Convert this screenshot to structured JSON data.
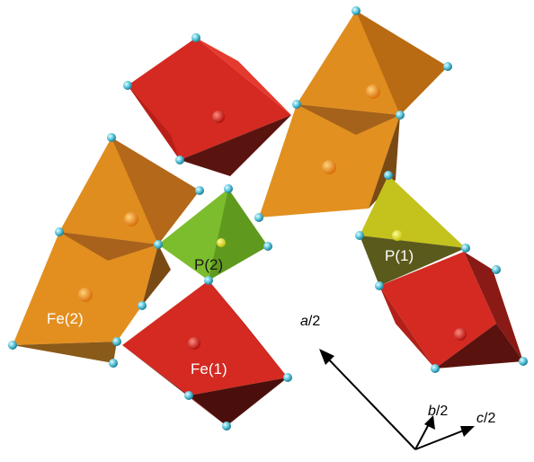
{
  "labels": {
    "fe1": "Fe(1)",
    "fe2": "Fe(2)",
    "p1": "P(1)",
    "p2": "P(2)"
  },
  "axes": {
    "a": {
      "sym": "a",
      "suffix": "/2"
    },
    "b": {
      "sym": "b",
      "suffix": "/2"
    },
    "c": {
      "sym": "c",
      "suffix": "/2"
    }
  },
  "colors": {
    "fe1_polyhedron": "#d42a22",
    "fe2_polyhedron": "#dd8a1e",
    "p1_tetrahedron": "#c4c21c",
    "p2_tetrahedron": "#7cbd2e",
    "oxygen_atom": "#6fd3e6",
    "axis_arrow": "#000000"
  },
  "icons": [
    "oxygen-atom-sphere",
    "fe-atom-sphere",
    "p-atom-sphere",
    "axis-arrow"
  ]
}
